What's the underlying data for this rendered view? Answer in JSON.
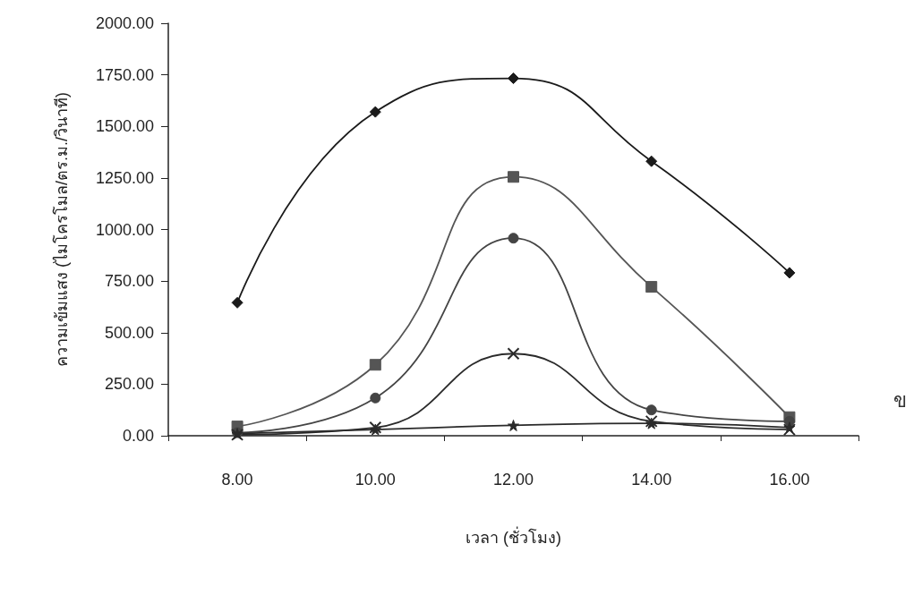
{
  "chart_data": {
    "type": "line",
    "xlabel": "เวลา (ชั่วโมง)",
    "ylabel": "ความเข้มแสง (ไมโครโมล/ตร.ม./วินาที)",
    "categories": [
      "8.00",
      "10.00",
      "12.00",
      "14.00",
      "16.00"
    ],
    "ylim": [
      0,
      2000
    ],
    "yticks": [
      {
        "value": 0,
        "label": "0.00"
      },
      {
        "value": 250,
        "label": "250.00"
      },
      {
        "value": 500,
        "label": "500.00"
      },
      {
        "value": 750,
        "label": "750.00"
      },
      {
        "value": 1000,
        "label": "1000.00"
      },
      {
        "value": 1250,
        "label": "1250.00"
      },
      {
        "value": 1500,
        "label": "1500.00"
      },
      {
        "value": 1750,
        "label": "1750.00"
      },
      {
        "value": 2000,
        "label": "2000.00"
      }
    ],
    "line_style": "solid",
    "annotations": [
      "ข"
    ],
    "series": [
      {
        "color": "#1a1a1a",
        "marker": "diamond",
        "values": [
          645,
          1570,
          1733,
          1331,
          790
        ]
      },
      {
        "color": "#555555",
        "marker": "square",
        "values": [
          45,
          344,
          1255,
          722,
          90
        ]
      },
      {
        "color": "#444444",
        "marker": "circle",
        "values": [
          15,
          183,
          958,
          125,
          70
        ]
      },
      {
        "color": "#2a2a2a",
        "marker": "cross",
        "values": [
          5,
          40,
          398,
          70,
          30
        ]
      },
      {
        "color": "#2a2a2a",
        "marker": "star",
        "values": [
          10,
          30,
          50,
          60,
          40
        ]
      }
    ]
  }
}
